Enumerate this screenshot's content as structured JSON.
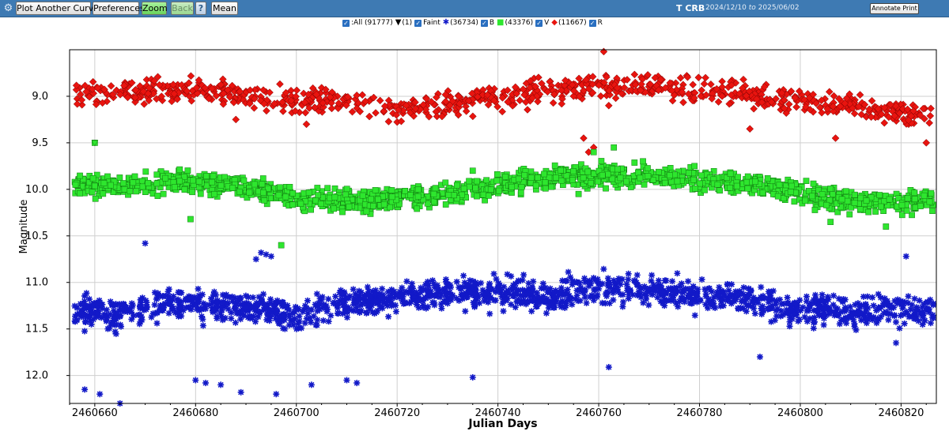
{
  "toolbar": {
    "plot_another_label": "Plot Another Curve",
    "preferences_label": "Preferences",
    "zoom_label": "Zoom",
    "back_label": "Back",
    "help_label": "?",
    "mean_label": "Mean",
    "star_name": "T CRB",
    "date_from": "2024/12/10",
    "date_to_word": "to",
    "date_to": "2025/06/02",
    "annotate_label": "Annotate Print"
  },
  "legend": {
    "all_label": ":All (91777)",
    "faint_count": "(1)",
    "faint_label": "Faint",
    "b_count": "(36734)",
    "b_label": "B",
    "v_count": "(43376)",
    "v_label": "V",
    "r_count": "(11667)",
    "r_label": "R"
  },
  "chart_data": {
    "type": "scatter",
    "xlabel": "Julian Days",
    "ylabel": "Magnitude",
    "xlim": [
      2460655,
      2460827
    ],
    "ylim_inverted": [
      12.3,
      8.5
    ],
    "xticks": [
      2460660,
      2460680,
      2460700,
      2460720,
      2460740,
      2460760,
      2460780,
      2460800,
      2460820
    ],
    "yticks": [
      9.0,
      9.5,
      10.0,
      10.5,
      11.0,
      11.5,
      12.0
    ],
    "ytick_labels": [
      "9.0",
      "9.5",
      "10.0",
      "10.5",
      "11.0",
      "11.5",
      "12.0"
    ],
    "grid": true,
    "series": [
      {
        "name": "R",
        "color": "#e8140f",
        "marker": "diamond",
        "trend": [
          [
            2460655,
            9.0
          ],
          [
            2460665,
            8.95
          ],
          [
            2460680,
            8.92
          ],
          [
            2460695,
            9.02
          ],
          [
            2460710,
            9.05
          ],
          [
            2460720,
            9.15
          ],
          [
            2460735,
            9.05
          ],
          [
            2460750,
            8.95
          ],
          [
            2460760,
            8.88
          ],
          [
            2460770,
            8.9
          ],
          [
            2460785,
            8.95
          ],
          [
            2460800,
            9.05
          ],
          [
            2460815,
            9.15
          ],
          [
            2460827,
            9.2
          ]
        ],
        "spread": 0.12,
        "outliers": [
          [
            2460757,
            9.45
          ],
          [
            2460758,
            9.6
          ],
          [
            2460759,
            9.55
          ],
          [
            2460762,
            9.1
          ],
          [
            2460761,
            8.52
          ],
          [
            2460790,
            9.35
          ],
          [
            2460807,
            9.45
          ],
          [
            2460825,
            9.5
          ],
          [
            2460702,
            9.3
          ],
          [
            2460688,
            9.25
          ]
        ]
      },
      {
        "name": "V",
        "color": "#2ee62e",
        "marker": "square",
        "trend": [
          [
            2460655,
            9.97
          ],
          [
            2460665,
            9.95
          ],
          [
            2460680,
            9.92
          ],
          [
            2460690,
            9.98
          ],
          [
            2460700,
            10.1
          ],
          [
            2460710,
            10.12
          ],
          [
            2460720,
            10.1
          ],
          [
            2460730,
            10.05
          ],
          [
            2460745,
            9.9
          ],
          [
            2460760,
            9.85
          ],
          [
            2460770,
            9.85
          ],
          [
            2460785,
            9.92
          ],
          [
            2460795,
            10.0
          ],
          [
            2460805,
            10.1
          ],
          [
            2460815,
            10.15
          ],
          [
            2460827,
            10.12
          ]
        ],
        "spread": 0.11,
        "outliers": [
          [
            2460660,
            9.5
          ],
          [
            2460697,
            10.6
          ],
          [
            2460679,
            10.32
          ],
          [
            2460763,
            9.55
          ],
          [
            2460759,
            9.6
          ],
          [
            2460735,
            9.8
          ],
          [
            2460779,
            9.75
          ],
          [
            2460806,
            10.35
          ],
          [
            2460817,
            10.4
          ],
          [
            2460756,
            10.05
          ]
        ]
      },
      {
        "name": "B",
        "color": "#1219c8",
        "marker": "star",
        "trend": [
          [
            2460655,
            11.3
          ],
          [
            2460665,
            11.35
          ],
          [
            2460675,
            11.2
          ],
          [
            2460685,
            11.25
          ],
          [
            2460695,
            11.3
          ],
          [
            2460700,
            11.35
          ],
          [
            2460712,
            11.2
          ],
          [
            2460725,
            11.15
          ],
          [
            2460740,
            11.1
          ],
          [
            2460750,
            11.15
          ],
          [
            2460760,
            11.05
          ],
          [
            2460770,
            11.1
          ],
          [
            2460780,
            11.15
          ],
          [
            2460790,
            11.2
          ],
          [
            2460800,
            11.3
          ],
          [
            2460815,
            11.3
          ],
          [
            2460827,
            11.3
          ]
        ],
        "spread": 0.15,
        "outliers": [
          [
            2460670,
            10.58
          ],
          [
            2460692,
            10.75
          ],
          [
            2460693,
            10.68
          ],
          [
            2460694,
            10.7
          ],
          [
            2460695,
            10.72
          ],
          [
            2460658,
            12.15
          ],
          [
            2460661,
            12.2
          ],
          [
            2460665,
            12.3
          ],
          [
            2460680,
            12.05
          ],
          [
            2460682,
            12.08
          ],
          [
            2460685,
            12.1
          ],
          [
            2460689,
            12.18
          ],
          [
            2460696,
            12.2
          ],
          [
            2460703,
            12.1
          ],
          [
            2460710,
            12.05
          ],
          [
            2460712,
            12.08
          ],
          [
            2460735,
            12.02
          ],
          [
            2460762,
            11.91
          ],
          [
            2460792,
            11.8
          ],
          [
            2460821,
            10.72
          ],
          [
            2460819,
            11.65
          ]
        ]
      },
      {
        "name": "Faint",
        "color": "#000000",
        "marker": "triangle-down",
        "trend": [],
        "spread": 0,
        "outliers": [
          [
            2460660,
            9.5
          ]
        ]
      }
    ]
  }
}
